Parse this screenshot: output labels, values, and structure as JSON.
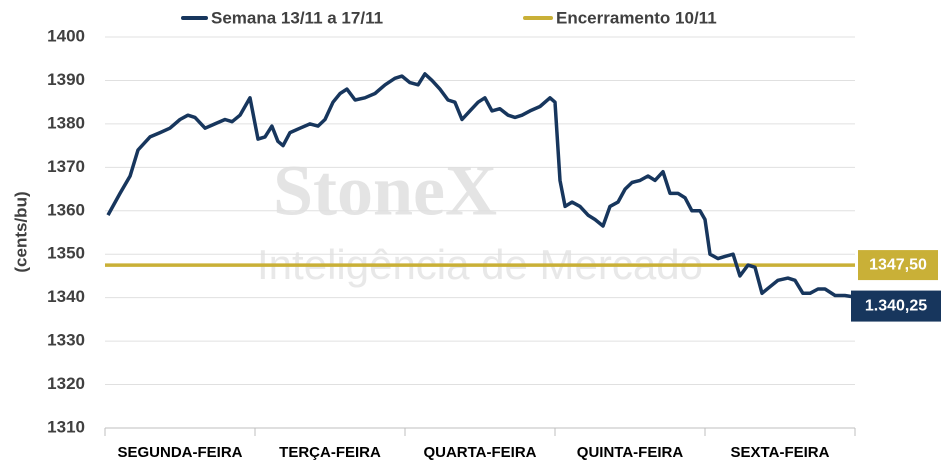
{
  "chart_data": {
    "type": "line",
    "ylabel": "(cents/bu)",
    "categories": [
      "SEGUNDA-FEIRA",
      "TERÇA-FEIRA",
      "QUARTA-FEIRA",
      "QUINTA-FEIRA",
      "SEXTA-FEIRA"
    ],
    "xlim": [
      0,
      5
    ],
    "ylim": [
      1310,
      1400
    ],
    "yticks": [
      1310,
      1320,
      1330,
      1340,
      1350,
      1360,
      1370,
      1380,
      1390,
      1400
    ],
    "grid": true,
    "watermark": {
      "brand": "StoneX",
      "tagline": "Inteligência de Mercado"
    },
    "series": [
      {
        "name": "Semana 13/11 a 17/11",
        "color": "#17365d",
        "x": [
          0.02,
          0.1,
          0.167,
          0.22,
          0.3,
          0.367,
          0.433,
          0.5,
          0.553,
          0.6,
          0.667,
          0.733,
          0.8,
          0.847,
          0.9,
          0.967,
          1.02,
          1.067,
          1.113,
          1.153,
          1.187,
          1.233,
          1.3,
          1.367,
          1.42,
          1.467,
          1.52,
          1.567,
          1.613,
          1.667,
          1.733,
          1.8,
          1.867,
          1.933,
          1.98,
          2.033,
          2.087,
          2.133,
          2.18,
          2.233,
          2.287,
          2.333,
          2.38,
          2.433,
          2.487,
          2.533,
          2.58,
          2.633,
          2.687,
          2.733,
          2.78,
          2.833,
          2.9,
          2.967,
          3.0,
          3.033,
          3.067,
          3.113,
          3.167,
          3.22,
          3.267,
          3.32,
          3.367,
          3.42,
          3.467,
          3.513,
          3.567,
          3.62,
          3.667,
          3.72,
          3.767,
          3.82,
          3.867,
          3.913,
          3.967,
          4.0,
          4.033,
          4.087,
          4.133,
          4.187,
          4.233,
          4.287,
          4.333,
          4.38,
          4.433,
          4.487,
          4.553,
          4.6,
          4.653,
          4.7,
          4.753,
          4.8,
          4.867,
          4.933,
          4.98
        ],
        "values": [
          1359,
          1364,
          1368,
          1374,
          1377,
          1378,
          1379,
          1381,
          1382,
          1381.5,
          1379,
          1380,
          1381,
          1380.5,
          1382,
          1386,
          1376.5,
          1377,
          1379.5,
          1376,
          1375,
          1378,
          1379,
          1380,
          1379.5,
          1381,
          1385,
          1387,
          1388,
          1385.5,
          1386,
          1387,
          1389,
          1390.5,
          1391,
          1389.5,
          1389,
          1391.5,
          1390,
          1388,
          1385.5,
          1385,
          1381,
          1383,
          1385,
          1386,
          1383,
          1383.5,
          1382,
          1381.5,
          1382,
          1383,
          1384,
          1386,
          1385,
          1367,
          1361,
          1362,
          1361,
          1359,
          1358,
          1356.5,
          1361,
          1362,
          1365,
          1366.5,
          1367,
          1368,
          1367,
          1369,
          1364,
          1364,
          1363,
          1360,
          1360,
          1358,
          1350,
          1349,
          1349.5,
          1350,
          1345,
          1347.5,
          1347,
          1341,
          1342.5,
          1344,
          1344.5,
          1344,
          1341,
          1341,
          1342,
          1342,
          1340.5,
          1340.5,
          1340.25
        ],
        "value_labels": [
          null,
          null,
          null,
          null,
          null,
          null,
          null,
          null,
          null,
          null,
          null,
          null,
          null,
          null,
          null,
          null,
          null,
          null,
          null,
          null,
          null,
          null,
          null,
          null,
          null,
          null,
          null,
          null,
          null,
          null,
          null,
          null,
          null,
          null,
          null,
          null,
          null,
          null,
          null,
          null,
          null,
          null,
          null,
          null,
          null,
          null,
          null,
          null,
          null,
          null,
          null,
          null,
          null,
          null,
          null,
          null,
          null,
          null,
          null,
          null,
          null,
          null,
          null,
          null,
          null,
          null,
          null,
          null,
          null,
          null,
          null,
          null,
          null,
          null,
          null,
          null,
          null,
          null,
          null,
          null,
          null,
          null,
          null,
          null,
          null,
          null,
          null,
          null,
          null,
          null,
          null,
          null,
          null,
          null,
          "1.340,25"
        ]
      }
    ],
    "reference": {
      "name": "Encerramento 10/11",
      "value": 1347.5,
      "value_label": "1347,50",
      "color": "#c9b037"
    }
  }
}
